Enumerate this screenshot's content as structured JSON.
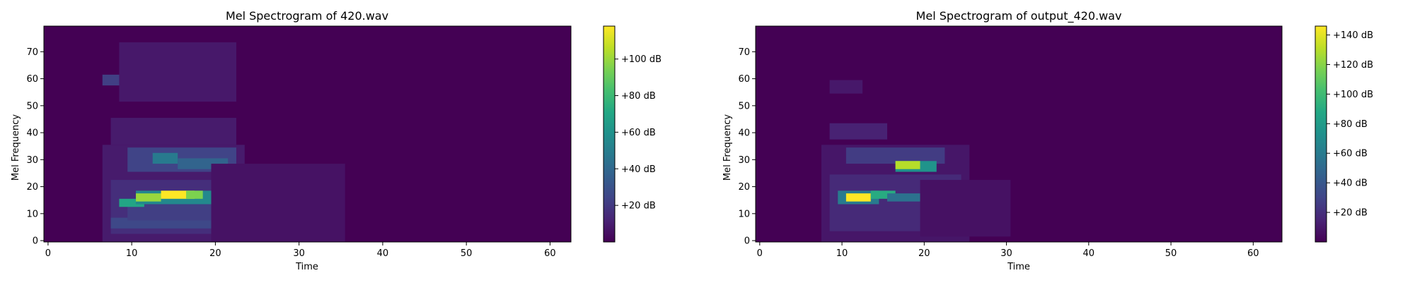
{
  "chart_data": [
    {
      "type": "heatmap",
      "title": "Mel Spectrogram of 420.wav",
      "xlabel": "Time",
      "ylabel": "Mel Frequency",
      "xlim": [
        -0.5,
        62.5
      ],
      "ylim": [
        -0.5,
        79.5
      ],
      "xticks": [
        "0",
        "10",
        "20",
        "30",
        "40",
        "50",
        "60"
      ],
      "yticks": [
        "0",
        "10",
        "20",
        "30",
        "40",
        "50",
        "60",
        "70"
      ],
      "colormap": "viridis",
      "colorbar": {
        "range_db": [
          0,
          118
        ],
        "ticks": [
          20,
          40,
          60,
          80,
          100
        ],
        "tick_labels": [
          "+20 dB",
          "+40 dB",
          "+60 dB",
          "+80 dB",
          "+100 dB"
        ]
      },
      "blobs": [
        {
          "t0": 7,
          "t1": 23,
          "m0": 0,
          "m1": 35,
          "db": 9
        },
        {
          "t0": 8,
          "t1": 22,
          "m0": 3,
          "m1": 22,
          "db": 16
        },
        {
          "t0": 8,
          "t1": 20,
          "m0": 5,
          "m1": 8,
          "db": 26
        },
        {
          "t0": 10,
          "t1": 21,
          "m0": 8,
          "m1": 13,
          "db": 22
        },
        {
          "t0": 9,
          "t1": 11,
          "m0": 13,
          "m1": 15,
          "db": 70
        },
        {
          "t0": 11,
          "t1": 20,
          "m0": 14,
          "m1": 18,
          "db": 55
        },
        {
          "t0": 11,
          "t1": 13,
          "m0": 15,
          "m1": 17,
          "db": 100
        },
        {
          "t0": 14,
          "t1": 17,
          "m0": 16,
          "m1": 18,
          "db": 118
        },
        {
          "t0": 17,
          "t1": 18,
          "m0": 16,
          "m1": 18,
          "db": 95
        },
        {
          "t0": 10,
          "t1": 22,
          "m0": 26,
          "m1": 34,
          "db": 24
        },
        {
          "t0": 13,
          "t1": 15,
          "m0": 29,
          "m1": 32,
          "db": 48
        },
        {
          "t0": 16,
          "t1": 21,
          "m0": 27,
          "m1": 30,
          "db": 38
        },
        {
          "t0": 20,
          "t1": 35,
          "m0": 0,
          "m1": 28,
          "db": 6
        },
        {
          "t0": 8,
          "t1": 22,
          "m0": 36,
          "m1": 45,
          "db": 9
        },
        {
          "t0": 7,
          "t1": 10,
          "m0": 58,
          "m1": 61,
          "db": 22
        },
        {
          "t0": 9,
          "t1": 22,
          "m0": 52,
          "m1": 73,
          "db": 8
        }
      ]
    },
    {
      "type": "heatmap",
      "title": "Mel Spectrogram of output_420.wav",
      "xlabel": "Time",
      "ylabel": "Mel Frequency",
      "xlim": [
        -0.5,
        63.5
      ],
      "ylim": [
        -0.5,
        79.5
      ],
      "xticks": [
        "0",
        "10",
        "20",
        "30",
        "40",
        "50",
        "60"
      ],
      "yticks": [
        "0",
        "10",
        "20",
        "30",
        "40",
        "50",
        "60",
        "70"
      ],
      "colormap": "viridis",
      "colorbar": {
        "range_db": [
          0,
          146
        ],
        "ticks": [
          20,
          40,
          60,
          80,
          100,
          120,
          140
        ],
        "tick_labels": [
          "+20 dB",
          "+40 dB",
          "+60 dB",
          "+80 dB",
          "+100 dB",
          "+120 dB",
          "+140 dB"
        ]
      },
      "blobs": [
        {
          "t0": 8,
          "t1": 25,
          "m0": 0,
          "m1": 35,
          "db": 9
        },
        {
          "t0": 9,
          "t1": 24,
          "m0": 4,
          "m1": 24,
          "db": 18
        },
        {
          "t0": 10,
          "t1": 14,
          "m0": 14,
          "m1": 18,
          "db": 60
        },
        {
          "t0": 11,
          "t1": 13,
          "m0": 15,
          "m1": 17,
          "db": 146
        },
        {
          "t0": 14,
          "t1": 16,
          "m0": 16,
          "m1": 18,
          "db": 90
        },
        {
          "t0": 16,
          "t1": 20,
          "m0": 15,
          "m1": 17,
          "db": 55
        },
        {
          "t0": 11,
          "t1": 22,
          "m0": 29,
          "m1": 34,
          "db": 26
        },
        {
          "t0": 17,
          "t1": 21,
          "m0": 26,
          "m1": 29,
          "db": 75
        },
        {
          "t0": 17,
          "t1": 19,
          "m0": 27,
          "m1": 29,
          "db": 130
        },
        {
          "t0": 9,
          "t1": 15,
          "m0": 38,
          "m1": 43,
          "db": 14
        },
        {
          "t0": 9,
          "t1": 12,
          "m0": 55,
          "m1": 59,
          "db": 10
        },
        {
          "t0": 20,
          "t1": 30,
          "m0": 2,
          "m1": 22,
          "db": 7
        }
      ]
    }
  ]
}
